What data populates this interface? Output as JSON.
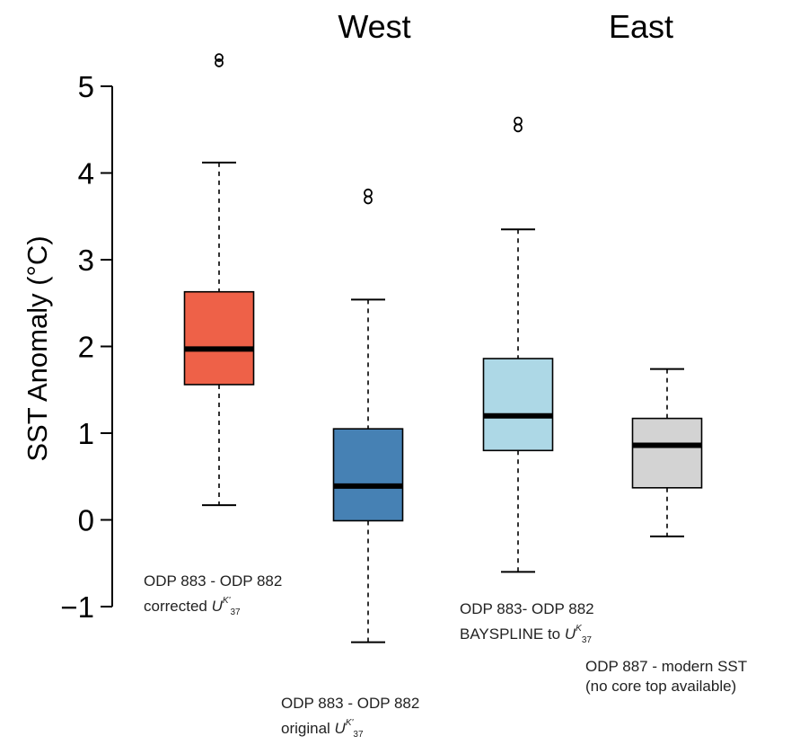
{
  "chart_data": {
    "type": "boxplot",
    "ylabel": "SST Anomaly (°C)",
    "ylim": [
      -1.4,
      5.8
    ],
    "yticks": [
      -1,
      0,
      1,
      2,
      3,
      4,
      5
    ],
    "yticklabels": [
      "−1",
      "0",
      "1",
      "2",
      "3",
      "4",
      "5"
    ],
    "group_labels": [
      "West",
      "East"
    ],
    "series": [
      {
        "label_line1": "ODP 883 - ODP 882",
        "label_line2": "corrected",
        "proxy_symbol": "U",
        "proxy_sup": "K'",
        "proxy_sub": "37",
        "color": "#EE6148",
        "whisker_low": 0.17,
        "q1": 1.56,
        "median": 1.97,
        "q3": 2.63,
        "whisker_high": 4.12,
        "outliers": [
          5.27,
          5.33
        ]
      },
      {
        "label_line1": "ODP 883 - ODP 882",
        "label_line2": "original",
        "proxy_symbol": "U",
        "proxy_sup": "K'",
        "proxy_sub": "37",
        "color": "#4681B4",
        "whisker_low": -1.41,
        "q1": -0.01,
        "median": 0.39,
        "q3": 1.05,
        "whisker_high": 2.54,
        "outliers": [
          3.69,
          3.77
        ]
      },
      {
        "label_line1": "ODP 883- ODP 882",
        "label_line2": "BAYSPLINE to",
        "proxy_symbol": "U",
        "proxy_sup": "K",
        "proxy_sub": "37",
        "color": "#ADD8E6",
        "whisker_low": -0.6,
        "q1": 0.8,
        "median": 1.2,
        "q3": 1.86,
        "whisker_high": 3.35,
        "outliers": [
          4.52,
          4.6
        ]
      },
      {
        "label_line1": "ODP 887 - modern SST",
        "label_line2": "(no core top available)",
        "proxy_symbol": "",
        "proxy_sup": "",
        "proxy_sub": "",
        "color": "#D3D3D3",
        "whisker_low": -0.19,
        "q1": 0.37,
        "median": 0.86,
        "q3": 1.17,
        "whisker_high": 1.74,
        "outliers": []
      }
    ]
  }
}
